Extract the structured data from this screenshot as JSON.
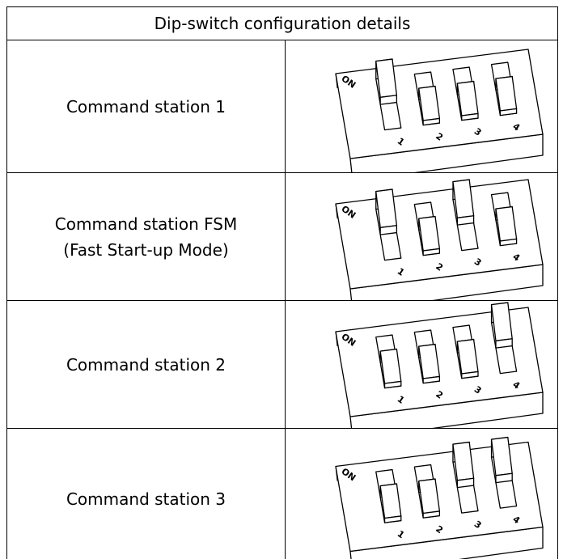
{
  "header": {
    "title": "Dip-switch configuration details"
  },
  "switch": {
    "on_label": "ON",
    "numbers": [
      "1",
      "2",
      "3",
      "4"
    ]
  },
  "rows": [
    {
      "lines": [
        "Command station 1"
      ],
      "on": [
        true,
        false,
        false,
        false
      ]
    },
    {
      "lines": [
        "Command station FSM",
        "(Fast Start-up Mode)"
      ],
      "on": [
        true,
        false,
        true,
        false
      ]
    },
    {
      "lines": [
        "Command station 2"
      ],
      "on": [
        false,
        false,
        false,
        true
      ]
    },
    {
      "lines": [
        "Command station 3"
      ],
      "on": [
        false,
        false,
        true,
        true
      ]
    }
  ]
}
